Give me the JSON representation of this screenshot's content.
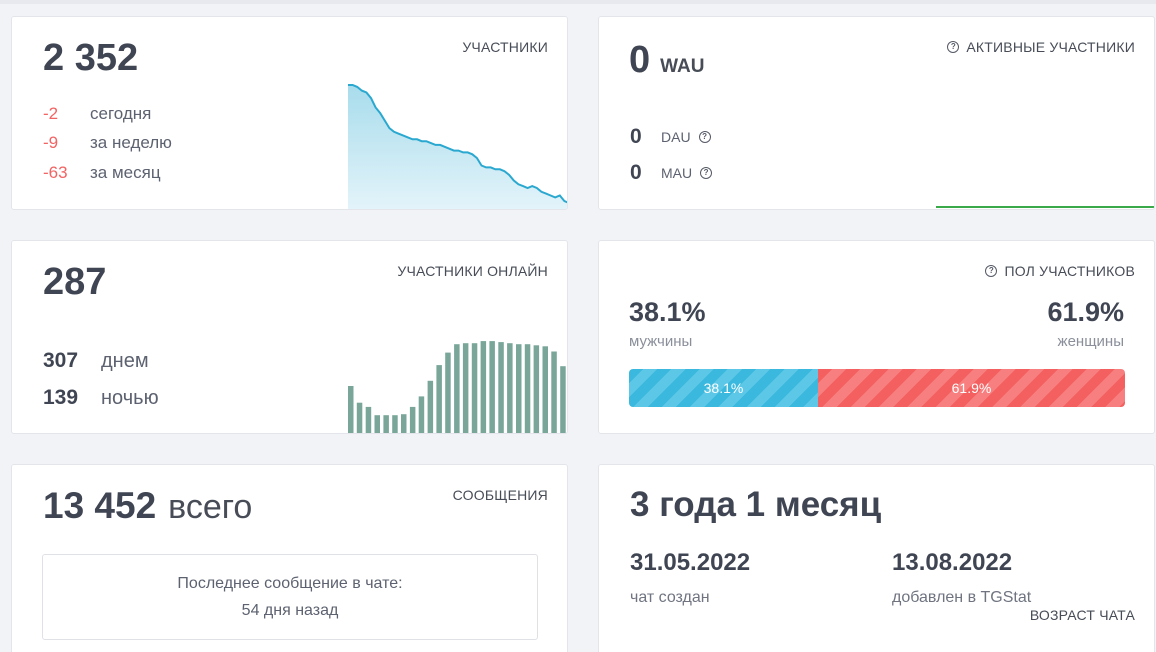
{
  "members": {
    "title": "УЧАСТНИКИ",
    "total": "2 352",
    "changes": [
      {
        "value": "-2",
        "label": "сегодня"
      },
      {
        "value": "-9",
        "label": "за неделю"
      },
      {
        "value": "-63",
        "label": "за месяц"
      }
    ],
    "chart_data": {
      "type": "area",
      "series": [
        {
          "values": [
            2415,
            2415,
            2414,
            2412,
            2411,
            2408,
            2403,
            2400,
            2396,
            2392,
            2390,
            2389,
            2388,
            2387,
            2386,
            2386,
            2385,
            2385,
            2384,
            2383,
            2383,
            2382,
            2381,
            2380,
            2380,
            2379,
            2379,
            2378,
            2376,
            2372,
            2371,
            2371,
            2370,
            2370,
            2369,
            2367,
            2364,
            2362,
            2361,
            2360,
            2361,
            2360,
            2358,
            2357,
            2356,
            2355,
            2356,
            2353,
            2352
          ]
        }
      ],
      "color": "#2aa8cf"
    }
  },
  "activity": {
    "title": "АКТИВНЫЕ УЧАСТНИКИ",
    "wau_value": "0",
    "wau_label": "WAU",
    "dau_value": "0",
    "dau_label": "DAU",
    "mau_value": "0",
    "mau_label": "MAU",
    "line_color": "#3aa94a"
  },
  "online": {
    "title": "УЧАСТНИКИ ОНЛАЙН",
    "total": "287",
    "day_value": "307",
    "day_label": "днем",
    "night_value": "139",
    "night_label": "ночью",
    "chart_data": {
      "type": "bar",
      "values": [
        45,
        29,
        25,
        17,
        17,
        17,
        18,
        25,
        35,
        50,
        65,
        77,
        85,
        86,
        86,
        88,
        88,
        87,
        86,
        85,
        85,
        84,
        83,
        78,
        64
      ],
      "color": "#7aa699"
    }
  },
  "gender": {
    "title": "ПОЛ УЧАСТНИКОВ",
    "male_pct": "38.1%",
    "male_label": "мужчины",
    "female_pct": "61.9%",
    "female_label": "женщины",
    "male_fraction": 0.381,
    "male_color": "#3bb8dd",
    "female_color": "#f46060"
  },
  "messages": {
    "title": "СООБЩЕНИЯ",
    "total": "13 452",
    "total_word": "всего",
    "last_line1": "Последнее сообщение в чате:",
    "last_line2": "54 дня назад"
  },
  "age": {
    "title": "ВОЗРАСТ ЧАТА",
    "value": "3 года 1 месяц",
    "created_date": "31.05.2022",
    "created_label": "чат создан",
    "added_date": "13.08.2022",
    "added_label": "добавлен в TGStat"
  }
}
